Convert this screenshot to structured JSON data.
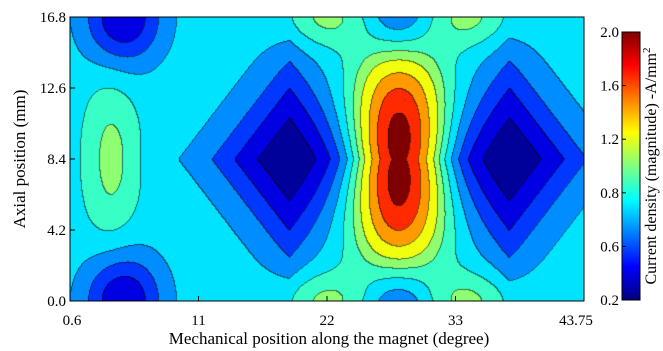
{
  "chart_data": {
    "type": "heatmap",
    "title": "",
    "xlabel": "Mechanical position along the magnet (degree)",
    "ylabel": "Axial  position (mm)",
    "colorbar_label": "Current density (magnitude) -A/mm",
    "colorbar_label_sup": "2",
    "x_ticks": [
      "0.6",
      "11",
      "22",
      "33",
      "43.75"
    ],
    "y_ticks": [
      "16.8",
      "12.6",
      "8.4",
      "4.2",
      "0.0"
    ],
    "colorbar_ticks": [
      "2.0",
      "1.6",
      "1.2",
      "0.8",
      "0.6",
      "0.2"
    ],
    "xlim": [
      0.6,
      43.75
    ],
    "ylim": [
      0.0,
      16.8
    ],
    "zlim": [
      0.2,
      2.0
    ],
    "colormap": [
      "#00007f",
      "#0000ff",
      "#007fff",
      "#00ffff",
      "#7fff7f",
      "#ffff00",
      "#ff7f00",
      "#ff0000",
      "#7f0000"
    ],
    "contour_levels": [
      0.3,
      0.45,
      0.6,
      0.75,
      0.9,
      1.05,
      1.2,
      1.4,
      1.6,
      1.8
    ],
    "features": [
      {
        "kind": "min",
        "x": 19.0,
        "y": 8.4,
        "value": 0.2
      },
      {
        "kind": "min",
        "x": 37.5,
        "y": 8.4,
        "value": 0.2
      },
      {
        "kind": "min",
        "x": 5.0,
        "y": 16.8,
        "value": 0.3
      },
      {
        "kind": "min",
        "x": 5.0,
        "y": 0.0,
        "value": 0.3
      },
      {
        "kind": "min",
        "x": 28.2,
        "y": 16.8,
        "value": 0.3
      },
      {
        "kind": "min",
        "x": 28.2,
        "y": 0.0,
        "value": 0.3
      },
      {
        "kind": "max",
        "x": 28.2,
        "y": 8.4,
        "value": 2.0
      },
      {
        "kind": "max",
        "x": 4.0,
        "y": 8.4,
        "value": 1.1
      },
      {
        "kind": "max",
        "x": 22.0,
        "y": 16.8,
        "value": 1.1
      },
      {
        "kind": "max",
        "x": 22.0,
        "y": 0.0,
        "value": 1.1
      },
      {
        "kind": "max",
        "x": 34.0,
        "y": 16.8,
        "value": 1.1
      },
      {
        "kind": "max",
        "x": 34.0,
        "y": 0.0,
        "value": 1.1
      }
    ]
  }
}
